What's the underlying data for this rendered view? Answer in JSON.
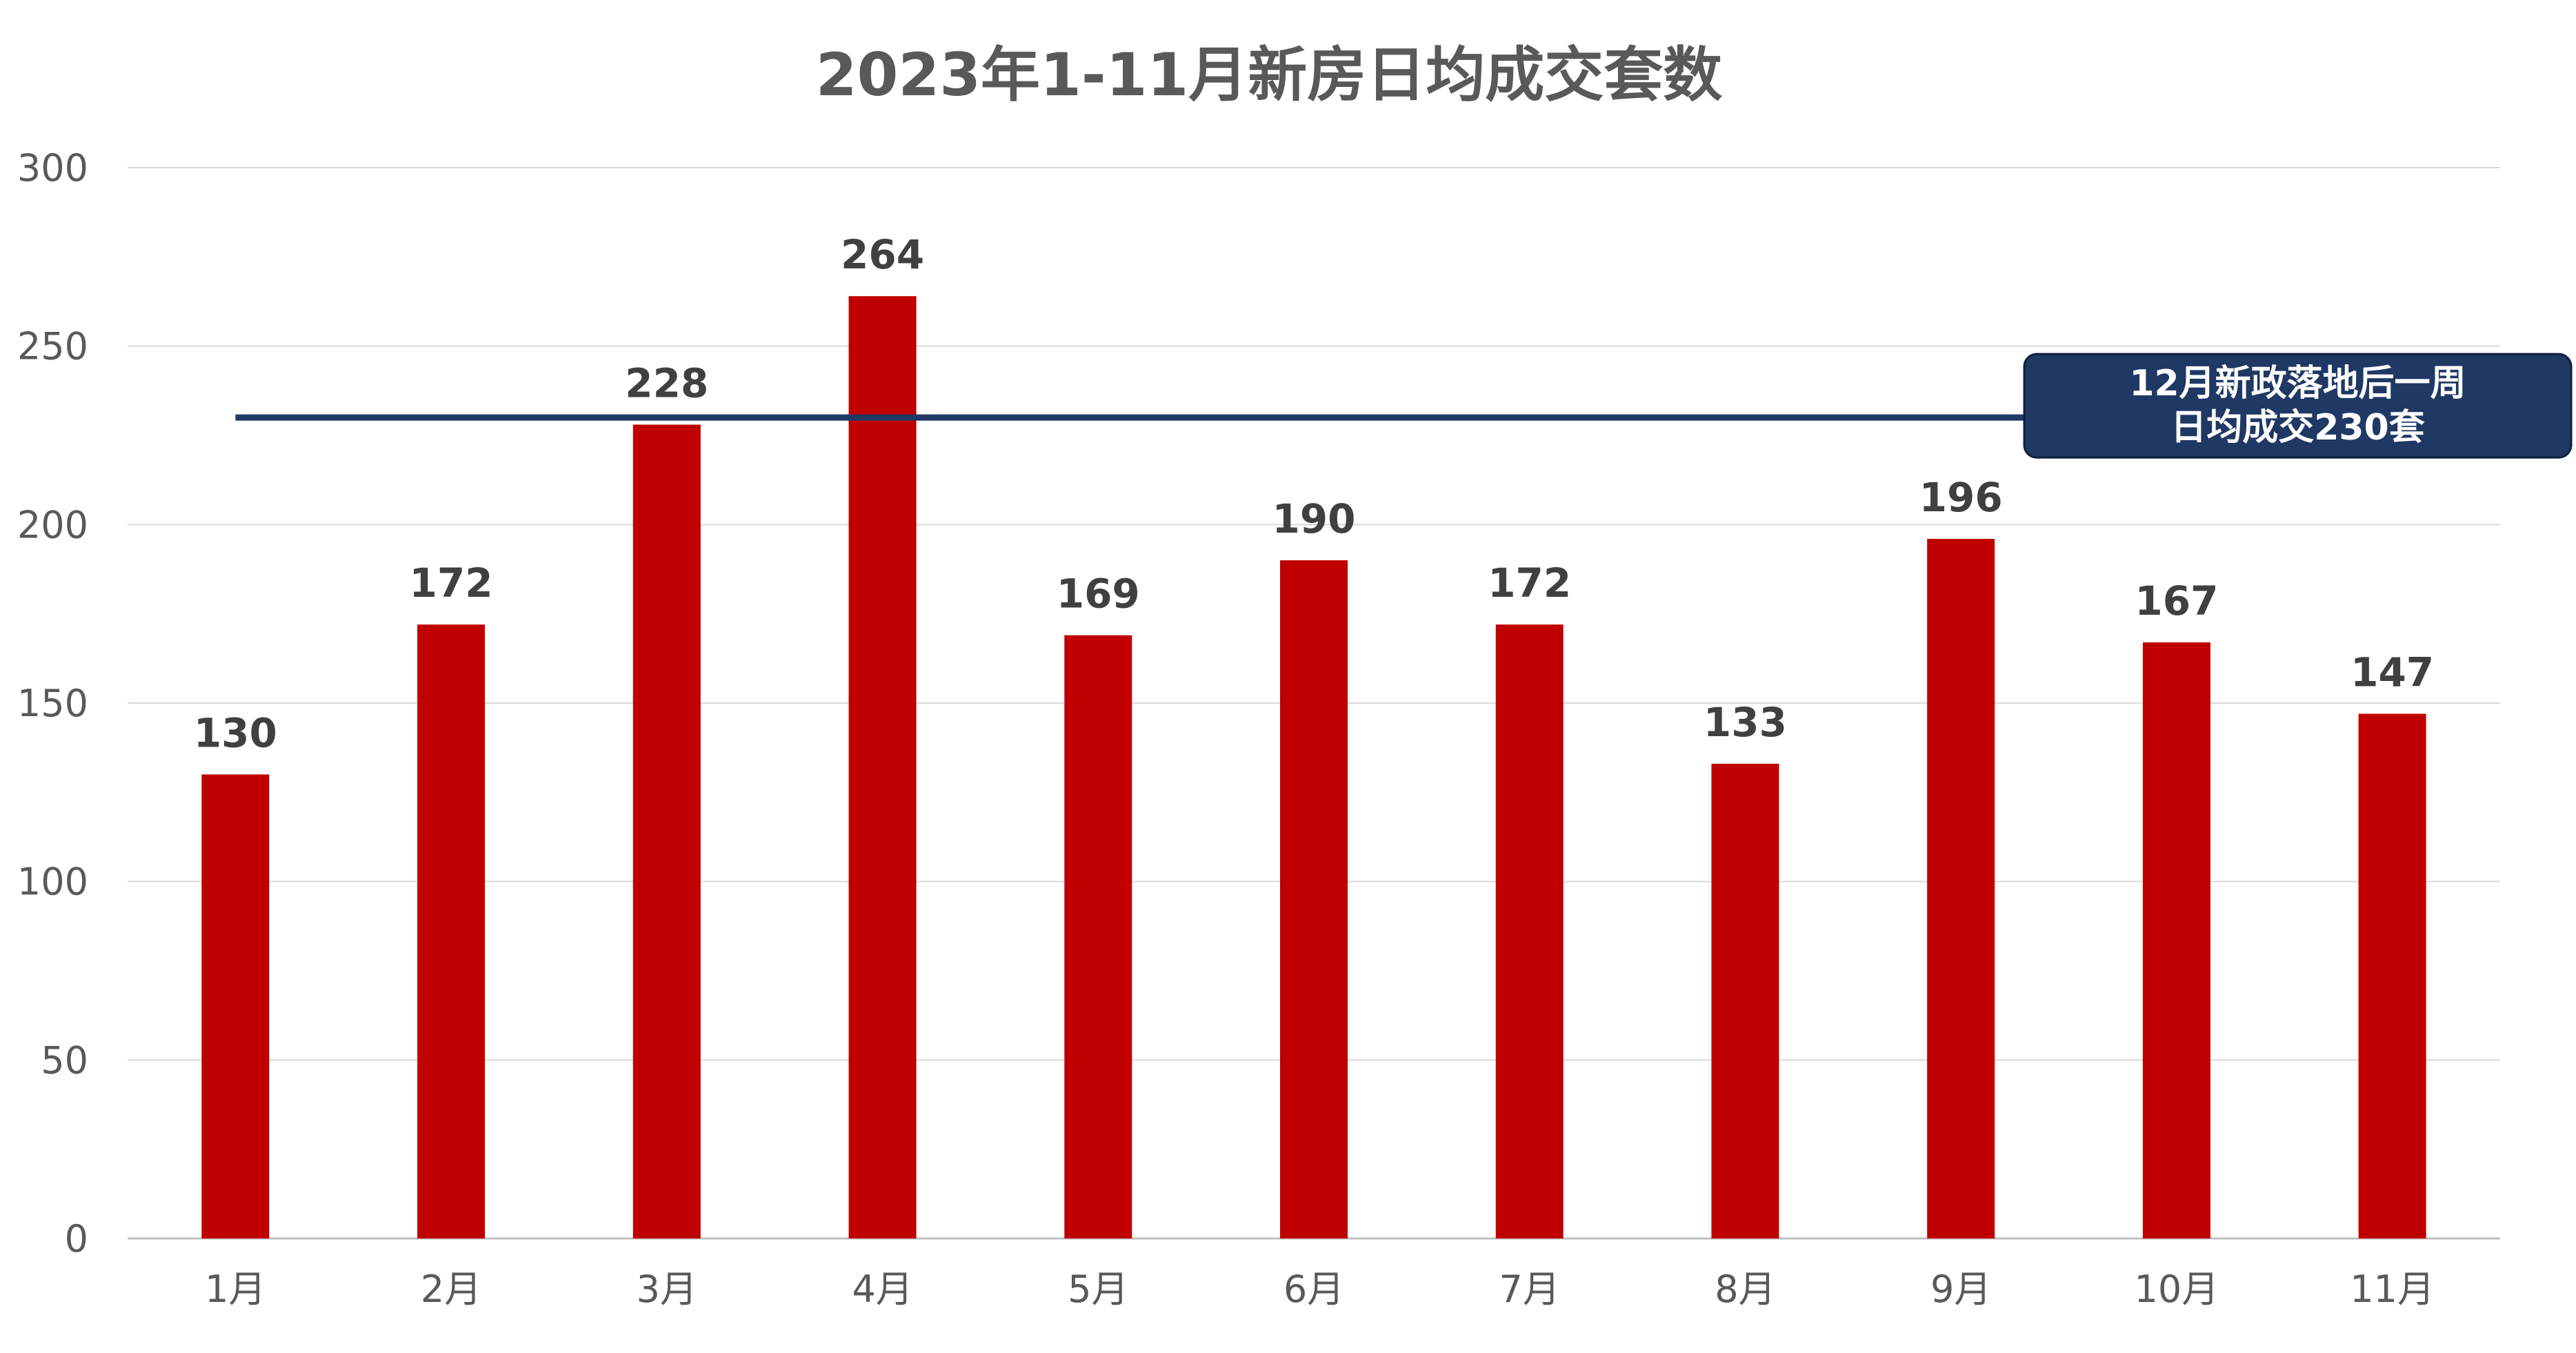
{
  "chart_data": {
    "type": "bar",
    "title": "2023年1-11月新房日均成交套数",
    "categories": [
      "1月",
      "2月",
      "3月",
      "4月",
      "5月",
      "6月",
      "7月",
      "8月",
      "9月",
      "10月",
      "11月"
    ],
    "values": [
      130,
      172,
      228,
      264,
      169,
      190,
      172,
      133,
      196,
      167,
      147
    ],
    "ylim": [
      0,
      300
    ],
    "yticks": [
      "0",
      "50",
      "100",
      "150",
      "200",
      "250",
      "300"
    ],
    "xlabel": "",
    "ylabel": "",
    "grid": true,
    "bar_color": "#C00000",
    "reference_line": {
      "value": 230,
      "color": "#1F3864",
      "callout": [
        "12月新政落地后一周",
        "日均成交230套"
      ]
    }
  }
}
